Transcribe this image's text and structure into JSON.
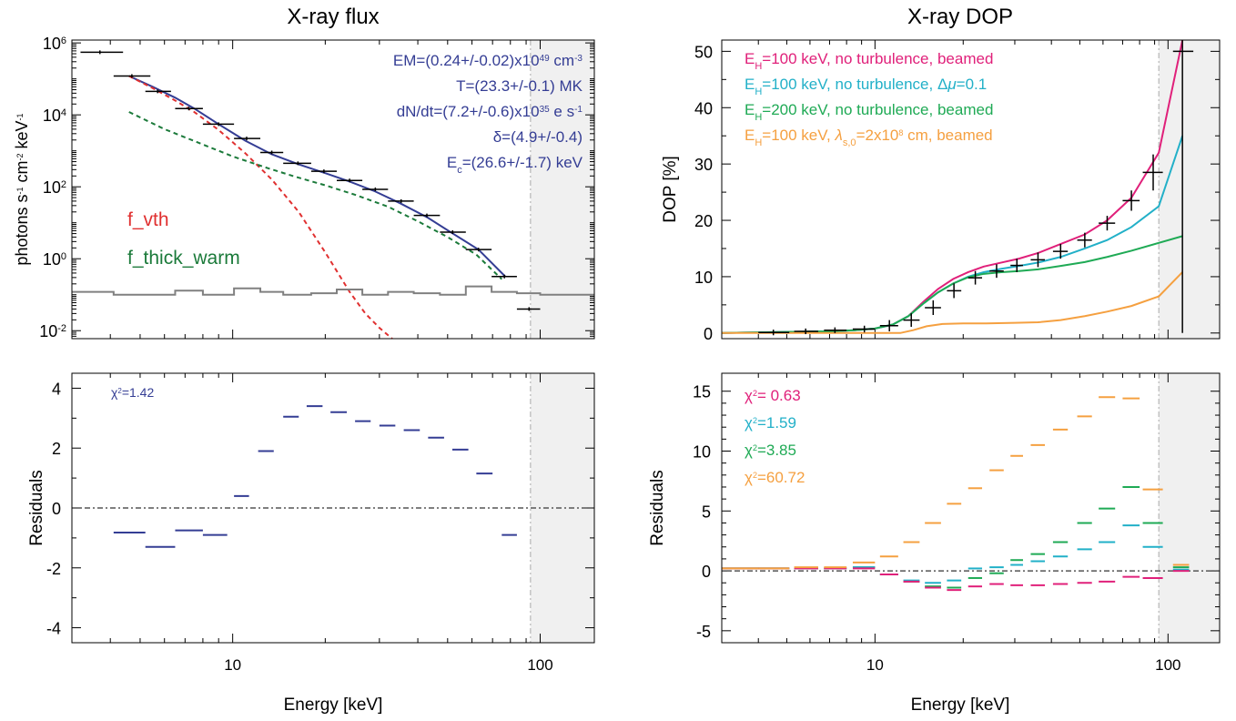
{
  "colors": {
    "blue": "#343d94",
    "red": "#e03030",
    "darkgreen": "#1b7a3a",
    "gray": "#808080",
    "magenta": "#e0207a",
    "cyan": "#22b0c8",
    "green": "#1faa55",
    "orange": "#f5a040",
    "shade": "#f0f0f0"
  },
  "chart_data": [
    {
      "id": "flux",
      "type": "line",
      "title": "X-ray flux",
      "ylabel_html": "photons s<tspan baseline-shift='super' font-size='9'>-1</tspan> cm<tspan baseline-shift='super' font-size='9'>-2</tspan> keV<tspan baseline-shift='super' font-size='9'>-1</tspan>",
      "xlabel": "",
      "xscale": "log",
      "yscale": "log",
      "xlim": [
        3,
        150
      ],
      "ylim": [
        0.006,
        1200000
      ],
      "xticks": [
        {
          "v": 10,
          "label": "10"
        },
        {
          "v": 100,
          "label": "100"
        }
      ],
      "yticks": [
        {
          "v": 0.01,
          "base": "10",
          "exp": "-2"
        },
        {
          "v": 1,
          "base": "10",
          "exp": "0"
        },
        {
          "v": 100,
          "base": "10",
          "exp": "2"
        },
        {
          "v": 10000,
          "base": "10",
          "exp": "4"
        },
        {
          "v": 1000000,
          "base": "10",
          "exp": "6"
        }
      ],
      "shade_from": 93,
      "data_points": [
        {
          "x": 3.7,
          "y": 550000,
          "xl": 3.2,
          "xh": 4.4
        },
        {
          "x": 4.7,
          "y": 120000,
          "xl": 4.1,
          "xh": 5.4
        },
        {
          "x": 5.7,
          "y": 45000,
          "xl": 5.2,
          "xh": 6.3
        },
        {
          "x": 7.2,
          "y": 15000,
          "xl": 6.5,
          "xh": 8.0
        },
        {
          "x": 9.0,
          "y": 5500,
          "xl": 8.0,
          "xh": 10.1
        },
        {
          "x": 11.1,
          "y": 2200,
          "xl": 10.1,
          "xh": 12.3
        },
        {
          "x": 13.4,
          "y": 900,
          "xl": 12.3,
          "xh": 14.6
        },
        {
          "x": 16.3,
          "y": 450,
          "xl": 14.6,
          "xh": 18.0
        },
        {
          "x": 19.8,
          "y": 270,
          "xl": 18.0,
          "xh": 21.8
        },
        {
          "x": 24.0,
          "y": 150,
          "xl": 21.8,
          "xh": 26.4
        },
        {
          "x": 29.1,
          "y": 85,
          "xl": 26.4,
          "xh": 32.0
        },
        {
          "x": 35.3,
          "y": 40,
          "xl": 32.0,
          "xh": 38.8
        },
        {
          "x": 42.8,
          "y": 16,
          "xl": 38.8,
          "xh": 47.2
        },
        {
          "x": 51.9,
          "y": 5.5,
          "xl": 47.2,
          "xh": 57.3
        },
        {
          "x": 63.0,
          "y": 1.8,
          "xl": 57.3,
          "xh": 69.5
        },
        {
          "x": 76.5,
          "y": 0.32,
          "xl": 69.5,
          "xh": 84.0
        },
        {
          "x": 92.0,
          "y": 0.04,
          "xl": 84.0,
          "xh": 100.0
        }
      ],
      "series": [
        {
          "name": "total",
          "color": "blue",
          "width": 2,
          "dash": "",
          "x": [
            4.6,
            5.5,
            6.5,
            7.5,
            9.0,
            11.0,
            13.4,
            16.4,
            20,
            24,
            29,
            35,
            43,
            52,
            63,
            77
          ],
          "y": [
            120000,
            60000,
            30000,
            15000,
            5500,
            1900,
            800,
            420,
            240,
            140,
            75,
            35,
            14,
            5.0,
            1.8,
            0.32
          ]
        },
        {
          "name": "f_vth",
          "color": "red",
          "width": 2,
          "dash": "5,4",
          "x": [
            4.6,
            5.5,
            6.5,
            7.5,
            9.0,
            11.0,
            13.4,
            16.4,
            20,
            24,
            27,
            30,
            33
          ],
          "y": [
            120000,
            55000,
            25000,
            12000,
            3800,
            850,
            160,
            20,
            1.5,
            0.12,
            0.03,
            0.012,
            0.006
          ]
        },
        {
          "name": "f_thick_warm",
          "color": "darkgreen",
          "width": 2,
          "dash": "5,4",
          "x": [
            4.6,
            6,
            8,
            10,
            13,
            16,
            20,
            25,
            32,
            40,
            50,
            62,
            75
          ],
          "y": [
            12000,
            4000,
            1500,
            700,
            330,
            190,
            110,
            60,
            28,
            11,
            4,
            1.3,
            0.27
          ]
        },
        {
          "name": "background",
          "color": "gray",
          "width": 2,
          "dash": "",
          "step": true,
          "edges": [
            3,
            4.1,
            5.2,
            6.5,
            8.0,
            10.1,
            12.3,
            14.6,
            18.0,
            21.8,
            26.4,
            32.0,
            38.8,
            47.2,
            57.3,
            69.5,
            84.0,
            100,
            150
          ],
          "y": [
            0.12,
            0.1,
            0.1,
            0.13,
            0.1,
            0.15,
            0.12,
            0.1,
            0.11,
            0.14,
            0.1,
            0.12,
            0.11,
            0.1,
            0.17,
            0.12,
            0.11,
            0.1
          ]
        }
      ],
      "annotations": {
        "em": {
          "a": "EM=(0.24+/-0.02)x10",
          "sup": "49",
          "b": " cm",
          "sup2": "-3"
        },
        "t": "T=(23.3+/-0.1) MK",
        "dndt": {
          "a": "dN/dt=(7.2+/-0.6)x10",
          "sup": "35",
          "b": " e s",
          "sup2": "-1"
        },
        "delta": "δ=(4.9+/-0.4)",
        "ec": {
          "a": "E",
          "sub": "c",
          "b": "=(26.6+/-1.7) keV"
        }
      },
      "legend": {
        "f_vth": "f_vth",
        "f_thick_warm": "f_thick_warm"
      }
    },
    {
      "id": "flux_res",
      "type": "scatter",
      "ylabel": "Residuals",
      "xlabel": "Energy [keV]",
      "xscale": "log",
      "xlim": [
        3,
        150
      ],
      "ylim": [
        -4.5,
        4.5
      ],
      "xticks": [
        {
          "v": 10,
          "label": "10"
        },
        {
          "v": 100,
          "label": "100"
        }
      ],
      "yticks": [
        {
          "v": -4,
          "label": "-4"
        },
        {
          "v": -2,
          "label": "-2"
        },
        {
          "v": 0,
          "label": "0"
        },
        {
          "v": 2,
          "label": "2"
        },
        {
          "v": 4,
          "label": "4"
        }
      ],
      "shade_from": 93,
      "chi2": {
        "sym": "χ",
        "sup": "2",
        "val": "=1.42"
      },
      "residuals": [
        {
          "xl": 4.1,
          "xh": 5.2,
          "y": -0.82
        },
        {
          "xl": 5.2,
          "xh": 6.5,
          "y": -1.3
        },
        {
          "xl": 6.5,
          "xh": 8.0,
          "y": -0.75
        },
        {
          "xl": 8.0,
          "xh": 9.6,
          "y": -0.9
        },
        {
          "xl": 10.1,
          "xh": 11.3,
          "y": 0.4
        },
        {
          "xl": 12.1,
          "xh": 13.6,
          "y": 1.9
        },
        {
          "xl": 14.6,
          "xh": 16.4,
          "y": 3.05
        },
        {
          "xl": 17.4,
          "xh": 19.6,
          "y": 3.4
        },
        {
          "xl": 20.8,
          "xh": 23.5,
          "y": 3.2
        },
        {
          "xl": 25.0,
          "xh": 28.1,
          "y": 2.9
        },
        {
          "xl": 30.0,
          "xh": 33.8,
          "y": 2.75
        },
        {
          "xl": 36.0,
          "xh": 40.6,
          "y": 2.6
        },
        {
          "xl": 43.2,
          "xh": 48.7,
          "y": 2.35
        },
        {
          "xl": 51.8,
          "xh": 58.4,
          "y": 1.95
        },
        {
          "xl": 62.0,
          "xh": 70.0,
          "y": 1.15
        },
        {
          "xl": 75.0,
          "xh": 84.0,
          "y": -0.9
        }
      ]
    },
    {
      "id": "dop",
      "type": "line",
      "title": "X-ray DOP",
      "ylabel": "DOP [%]",
      "xlabel": "",
      "xscale": "log",
      "xlim": [
        3,
        150
      ],
      "ylim": [
        -1,
        52
      ],
      "xticks": [
        {
          "v": 10,
          "label": "10"
        },
        {
          "v": 100,
          "label": "100"
        }
      ],
      "yticks": [
        {
          "v": 0,
          "label": "0"
        },
        {
          "v": 10,
          "label": "10"
        },
        {
          "v": 20,
          "label": "20"
        },
        {
          "v": 30,
          "label": "30"
        },
        {
          "v": 40,
          "label": "40"
        },
        {
          "v": 50,
          "label": "50"
        }
      ],
      "shade_from": 93,
      "data_points": [
        {
          "x": 4.5,
          "y": 0.1,
          "xl": 4.0,
          "xh": 5.1,
          "yerr": 0.5
        },
        {
          "x": 5.8,
          "y": 0.3,
          "xl": 5.3,
          "xh": 6.4,
          "yerr": 0.5
        },
        {
          "x": 7.3,
          "y": 0.5,
          "xl": 6.7,
          "xh": 8.0,
          "yerr": 0.5
        },
        {
          "x": 9.2,
          "y": 0.7,
          "xl": 8.4,
          "xh": 10.0,
          "yerr": 0.6
        },
        {
          "x": 11.2,
          "y": 1.3,
          "xl": 10.4,
          "xh": 12.0,
          "yerr": 1.0
        },
        {
          "x": 13.3,
          "y": 2.3,
          "xl": 12.5,
          "xh": 14.2,
          "yerr": 1.2
        },
        {
          "x": 15.8,
          "y": 4.5,
          "xl": 14.8,
          "xh": 16.8,
          "yerr": 1.3
        },
        {
          "x": 18.6,
          "y": 7.5,
          "xl": 17.6,
          "xh": 19.7,
          "yerr": 1.3
        },
        {
          "x": 22.0,
          "y": 9.8,
          "xl": 20.8,
          "xh": 23.2,
          "yerr": 1.2
        },
        {
          "x": 26.0,
          "y": 11.0,
          "xl": 24.6,
          "xh": 27.5,
          "yerr": 1.2
        },
        {
          "x": 30.5,
          "y": 12.0,
          "xl": 29.0,
          "xh": 32.0,
          "yerr": 1.2
        },
        {
          "x": 36.0,
          "y": 13.0,
          "xl": 34.0,
          "xh": 38.0,
          "yerr": 1.3
        },
        {
          "x": 43.0,
          "y": 14.5,
          "xl": 40.5,
          "xh": 45.5,
          "yerr": 1.3
        },
        {
          "x": 52.0,
          "y": 16.5,
          "xl": 49.0,
          "xh": 55.0,
          "yerr": 1.3
        },
        {
          "x": 62.0,
          "y": 19.5,
          "xl": 58.0,
          "xh": 66.0,
          "yerr": 1.3
        },
        {
          "x": 75.0,
          "y": 23.5,
          "xl": 70.0,
          "xh": 80.0,
          "yerr": 1.8
        },
        {
          "x": 89.0,
          "y": 28.5,
          "xl": 82.0,
          "xh": 96.0,
          "yerr": 3.2
        },
        {
          "x": 112.0,
          "y": 50.0,
          "xl": 104.0,
          "xh": 122.0,
          "yerr": 50
        }
      ],
      "series": [
        {
          "name": "E_H=100 keV, no turbulence, beamed",
          "color": "magenta",
          "width": 2,
          "x": [
            3,
            7,
            8.5,
            10,
            11.5,
            13,
            14.6,
            16.4,
            18.5,
            20.8,
            23.5,
            27,
            31,
            36,
            43,
            52,
            62,
            75,
            93,
            112
          ],
          "y": [
            0,
            0.3,
            0.5,
            0.8,
            1.5,
            3,
            5.5,
            7.8,
            9.6,
            10.8,
            11.8,
            12.5,
            13.2,
            14.2,
            15.8,
            17.5,
            20,
            24,
            32,
            52
          ]
        },
        {
          "name": "E_H=100 keV, no turbulence, Δμ=0.1",
          "color": "cyan",
          "width": 2,
          "x": [
            3,
            7,
            8.5,
            10,
            11.5,
            13,
            14.6,
            16.4,
            18.5,
            20.8,
            23.5,
            27,
            31,
            36,
            43,
            52,
            62,
            75,
            93,
            112
          ],
          "y": [
            0,
            0.3,
            0.5,
            0.8,
            1.5,
            3,
            5.2,
            7.2,
            8.8,
            10.0,
            10.8,
            11.4,
            11.9,
            12.5,
            13.5,
            15,
            16.5,
            18.8,
            22.5,
            35
          ]
        },
        {
          "name": "E_H=200 keV, no turbulence, beamed",
          "color": "green",
          "width": 2,
          "x": [
            3,
            7,
            8.5,
            10,
            11.5,
            13,
            14.6,
            16.4,
            18.5,
            20.8,
            23.5,
            27,
            31,
            36,
            43,
            52,
            62,
            75,
            93,
            112
          ],
          "y": [
            0,
            0.3,
            0.5,
            0.8,
            1.5,
            3,
            5.2,
            7.2,
            8.8,
            9.9,
            10.5,
            10.8,
            11.0,
            11.3,
            11.9,
            12.6,
            13.5,
            14.6,
            16.0,
            17.2
          ]
        },
        {
          "name": "E_H=100 keV, λ_s,0=2x10^8 cm, beamed",
          "color": "orange",
          "width": 2,
          "x": [
            3,
            7,
            9,
            10.5,
            12.2,
            13.5,
            15,
            17,
            20,
            24,
            30,
            36,
            43,
            52,
            62,
            75,
            93,
            112
          ],
          "y": [
            0,
            0,
            0,
            0,
            0,
            0.5,
            1.2,
            1.6,
            1.7,
            1.7,
            1.8,
            1.9,
            2.3,
            3.0,
            3.8,
            4.8,
            6.5,
            10.8
          ]
        }
      ],
      "legend": [
        {
          "color": "magenta",
          "text_html": "E<tspan baseline-shift='sub' font-size='11'>H</tspan>=100 keV, no turbulence, beamed"
        },
        {
          "color": "cyan",
          "text_html": "E<tspan baseline-shift='sub' font-size='11'>H</tspan>=100 keV, no turbulence, Δ<tspan font-style='italic'>μ</tspan>=0.1"
        },
        {
          "color": "green",
          "text_html": "E<tspan baseline-shift='sub' font-size='11'>H</tspan>=200 keV, no turbulence, beamed"
        },
        {
          "color": "orange",
          "text_html": "E<tspan baseline-shift='sub' font-size='11'>H</tspan>=100 keV, <tspan font-style='italic'>λ</tspan><tspan baseline-shift='sub' font-size='11'>s,0</tspan>=2x10<tspan baseline-shift='super' font-size='9'>8</tspan> cm, beamed"
        }
      ]
    },
    {
      "id": "dop_res",
      "type": "scatter",
      "ylabel": "Residuals",
      "xlabel": "Energy [keV]",
      "xscale": "log",
      "xlim": [
        3,
        150
      ],
      "ylim": [
        -6,
        16.5
      ],
      "xticks": [
        {
          "v": 10,
          "label": "10"
        },
        {
          "v": 100,
          "label": "100"
        }
      ],
      "yticks": [
        {
          "v": -5,
          "label": "-5"
        },
        {
          "v": 0,
          "label": "0"
        },
        {
          "v": 5,
          "label": "5"
        },
        {
          "v": 10,
          "label": "10"
        },
        {
          "v": 15,
          "label": "15"
        }
      ],
      "shade_from": 93,
      "chi2": [
        {
          "color": "magenta",
          "sym": "χ",
          "sup": "2",
          "val": "= 0.63"
        },
        {
          "color": "cyan",
          "sym": "χ",
          "sup": "2",
          "val": "=1.59"
        },
        {
          "color": "green",
          "sym": "χ",
          "sup": "2",
          "val": "=3.85"
        },
        {
          "color": "orange",
          "sym": "χ",
          "sup": "2",
          "val": "=60.72"
        }
      ],
      "bins": [
        [
          3,
          4
        ],
        [
          4,
          5.1
        ],
        [
          5.3,
          6.4
        ],
        [
          6.7,
          8.0
        ],
        [
          8.4,
          10.0
        ],
        [
          10.4,
          12.0
        ],
        [
          12.5,
          14.2
        ],
        [
          14.8,
          16.8
        ],
        [
          17.6,
          19.7
        ],
        [
          20.8,
          23.2
        ],
        [
          24.6,
          27.5
        ],
        [
          29.0,
          32.0
        ],
        [
          34.0,
          38.0
        ],
        [
          40.5,
          45.5
        ],
        [
          49.0,
          55.0
        ],
        [
          58.0,
          66.0
        ],
        [
          70.0,
          80.0
        ],
        [
          82.0,
          96.0
        ],
        [
          104.0,
          118.0
        ]
      ],
      "residuals": {
        "magenta": [
          0.2,
          0.2,
          0.2,
          0.2,
          0.2,
          -0.3,
          -0.9,
          -1.4,
          -1.6,
          -1.3,
          -1.1,
          -1.2,
          -1.2,
          -1.1,
          -1.0,
          -0.9,
          -0.5,
          -0.6,
          0.0
        ],
        "cyan": [
          0.2,
          0.2,
          0.2,
          0.2,
          0.3,
          -0.3,
          -0.8,
          -1.0,
          -0.8,
          0.2,
          0.3,
          0.5,
          0.8,
          1.2,
          1.8,
          2.4,
          3.8,
          2.0,
          0.1
        ],
        "green": [
          0.2,
          0.2,
          0.2,
          0.2,
          0.3,
          -0.3,
          -0.9,
          -1.3,
          -1.4,
          -0.6,
          -0.2,
          0.9,
          1.4,
          2.4,
          4.0,
          5.2,
          7.0,
          4.0,
          0.3
        ],
        "orange": [
          0.2,
          0.2,
          0.3,
          0.3,
          0.7,
          1.2,
          2.4,
          4.0,
          5.6,
          6.9,
          8.4,
          9.6,
          10.5,
          11.8,
          12.9,
          14.5,
          14.4,
          6.8,
          0.5
        ]
      }
    }
  ]
}
